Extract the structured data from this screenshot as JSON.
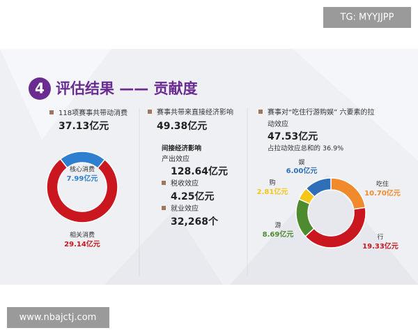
{
  "watermarks": {
    "top": "TG: MYYJJPP",
    "bottom": "www.nbajctj.com"
  },
  "header": {
    "number": "4",
    "title": "评估结果 —— 贡献度"
  },
  "consumption": {
    "caption": "118项赛事共带动消费",
    "total": "37.13亿元"
  },
  "direct": {
    "caption": "赛事共带来直接经济影响",
    "total": "49.38亿元"
  },
  "indirect": {
    "heading": "间接经济影响",
    "items": [
      {
        "name": "产出效应",
        "value": "128.64亿元"
      },
      {
        "name": "税收效应",
        "value": "4.25亿元"
      },
      {
        "name": "就业效应",
        "value": "32,268个"
      }
    ]
  },
  "elements": {
    "caption": [
      "赛事对“吃住行游购娱” 六要素的拉",
      "动效应"
    ],
    "total": "47.53亿元",
    "share": "占拉动效应总和的 36.9%"
  },
  "chart_data": [
    {
      "type": "pie",
      "categories": [
        "核心消费",
        "相关消费"
      ],
      "values": [
        7.99,
        29.14
      ],
      "value_labels": [
        "7.99亿元",
        "29.14亿元"
      ],
      "colors": [
        "#2f7fd0",
        "#c9161f"
      ]
    },
    {
      "type": "pie",
      "categories": [
        "吃住",
        "行",
        "游",
        "购",
        "娱"
      ],
      "values": [
        10.7,
        19.33,
        8.69,
        2.81,
        6.0
      ],
      "value_labels": [
        "10.70亿元",
        "19.33亿元",
        "8.69亿元",
        "2.81亿元",
        "6.00亿元"
      ],
      "colors": [
        "#f08a2c",
        "#c9161f",
        "#4e8a2e",
        "#f5c518",
        "#2e6fb8"
      ]
    }
  ]
}
